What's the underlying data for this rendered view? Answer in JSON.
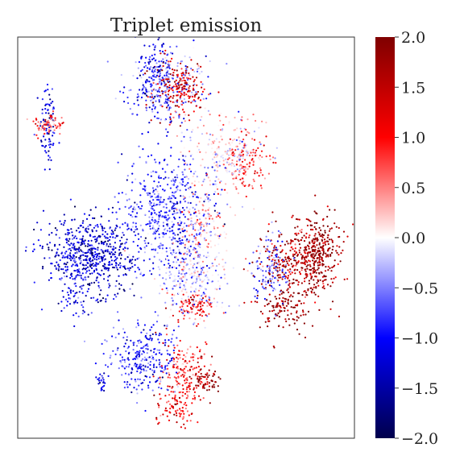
{
  "chart_data": {
    "type": "scatter",
    "title": "Triplet emission",
    "xlabel": "",
    "ylabel": "",
    "axes_ticks": "none",
    "colormap": "seismic",
    "color_scale": {
      "vmin": -2.0,
      "vmax": 2.0,
      "ticks": [
        2.0,
        1.5,
        1.0,
        0.5,
        0.0,
        -0.5,
        -1.0,
        -1.5,
        -2.0
      ],
      "tick_labels": [
        "2.0",
        "1.5",
        "1.0",
        "0.5",
        "0.0",
        "−0.5",
        "−1.0",
        "−1.5",
        "−2.0"
      ],
      "colors": {
        "min": "#00004c",
        "low": "#0000ff",
        "mid": "#ffffff",
        "high": "#ff0000",
        "max": "#7f0000"
      }
    },
    "clusters": [
      {
        "x": 0.09,
        "y": 0.78,
        "sx": 0.012,
        "sy": 0.06,
        "n": 90,
        "value": -1.2
      },
      {
        "x": 0.09,
        "y": 0.78,
        "sx": 0.025,
        "sy": 0.015,
        "n": 70,
        "value": 0.8
      },
      {
        "x": 0.44,
        "y": 0.88,
        "sx": 0.06,
        "sy": 0.04,
        "n": 260,
        "value": -0.6
      },
      {
        "x": 0.48,
        "y": 0.87,
        "sx": 0.04,
        "sy": 0.04,
        "n": 200,
        "value": 1.3
      },
      {
        "x": 0.41,
        "y": 0.9,
        "sx": 0.03,
        "sy": 0.06,
        "n": 120,
        "value": -1.0
      },
      {
        "x": 0.62,
        "y": 0.71,
        "sx": 0.06,
        "sy": 0.05,
        "n": 250,
        "value": 0.1
      },
      {
        "x": 0.68,
        "y": 0.69,
        "sx": 0.03,
        "sy": 0.04,
        "n": 110,
        "value": 0.8
      },
      {
        "x": 0.45,
        "y": 0.56,
        "sx": 0.07,
        "sy": 0.08,
        "n": 600,
        "value": -0.8
      },
      {
        "x": 0.55,
        "y": 0.53,
        "sx": 0.04,
        "sy": 0.05,
        "n": 120,
        "value": 0.4
      },
      {
        "x": 0.22,
        "y": 0.46,
        "sx": 0.07,
        "sy": 0.045,
        "n": 600,
        "value": -1.3
      },
      {
        "x": 0.18,
        "y": 0.38,
        "sx": 0.03,
        "sy": 0.04,
        "n": 90,
        "value": -1.0
      },
      {
        "x": 0.52,
        "y": 0.4,
        "sx": 0.05,
        "sy": 0.05,
        "n": 260,
        "value": -0.2
      },
      {
        "x": 0.52,
        "y": 0.33,
        "sx": 0.03,
        "sy": 0.02,
        "n": 90,
        "value": 1.0
      },
      {
        "x": 0.84,
        "y": 0.44,
        "sx": 0.06,
        "sy": 0.05,
        "n": 380,
        "value": 1.6
      },
      {
        "x": 0.89,
        "y": 0.47,
        "sx": 0.03,
        "sy": 0.04,
        "n": 180,
        "value": 1.9
      },
      {
        "x": 0.75,
        "y": 0.42,
        "sx": 0.025,
        "sy": 0.04,
        "n": 130,
        "value": -0.6
      },
      {
        "x": 0.79,
        "y": 0.32,
        "sx": 0.04,
        "sy": 0.03,
        "n": 110,
        "value": 1.8
      },
      {
        "x": 0.37,
        "y": 0.2,
        "sx": 0.05,
        "sy": 0.045,
        "n": 280,
        "value": -0.9
      },
      {
        "x": 0.5,
        "y": 0.17,
        "sx": 0.035,
        "sy": 0.04,
        "n": 170,
        "value": 0.9
      },
      {
        "x": 0.56,
        "y": 0.14,
        "sx": 0.02,
        "sy": 0.02,
        "n": 60,
        "value": 1.9
      },
      {
        "x": 0.47,
        "y": 0.08,
        "sx": 0.03,
        "sy": 0.025,
        "n": 90,
        "value": 1.0
      },
      {
        "x": 0.25,
        "y": 0.14,
        "sx": 0.006,
        "sy": 0.012,
        "n": 25,
        "value": -1.1
      }
    ]
  }
}
